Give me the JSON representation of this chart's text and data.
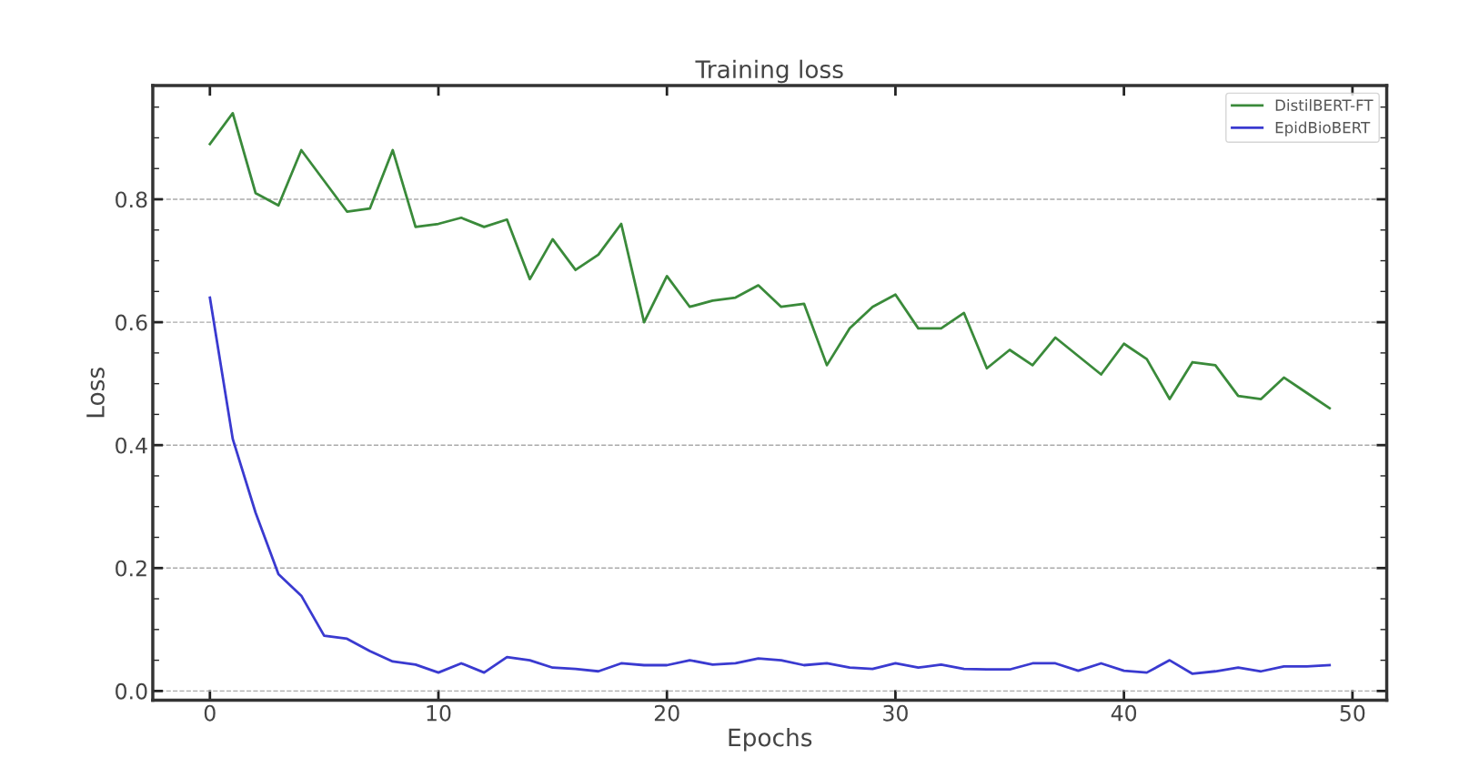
{
  "chart_data": {
    "type": "line",
    "title": "Training loss",
    "xlabel": "Epochs",
    "ylabel": "Loss",
    "x": [
      0,
      1,
      2,
      3,
      4,
      5,
      6,
      7,
      8,
      9,
      10,
      11,
      12,
      13,
      14,
      15,
      16,
      17,
      18,
      19,
      20,
      21,
      22,
      23,
      24,
      25,
      26,
      27,
      28,
      29,
      30,
      31,
      32,
      33,
      34,
      35,
      36,
      37,
      38,
      39,
      40,
      41,
      42,
      43,
      44,
      45,
      46,
      47,
      48,
      49
    ],
    "series": [
      {
        "name": "DistilBERT-FT",
        "color": "#3a8a3a",
        "values": [
          0.89,
          0.94,
          0.81,
          0.79,
          0.88,
          0.83,
          0.78,
          0.785,
          0.88,
          0.755,
          0.76,
          0.77,
          0.755,
          0.767,
          0.67,
          0.735,
          0.685,
          0.71,
          0.76,
          0.6,
          0.675,
          0.625,
          0.635,
          0.64,
          0.66,
          0.625,
          0.63,
          0.53,
          0.59,
          0.625,
          0.645,
          0.59,
          0.59,
          0.615,
          0.525,
          0.555,
          0.53,
          0.575,
          0.545,
          0.515,
          0.565,
          0.54,
          0.475,
          0.535,
          0.53,
          0.48,
          0.475,
          0.51,
          0.485,
          0.46
        ]
      },
      {
        "name": "EpidBioBERT",
        "color": "#3a3ad0",
        "values": [
          0.64,
          0.41,
          0.29,
          0.19,
          0.155,
          0.09,
          0.085,
          0.065,
          0.048,
          0.043,
          0.03,
          0.045,
          0.03,
          0.055,
          0.05,
          0.038,
          0.036,
          0.032,
          0.045,
          0.042,
          0.042,
          0.05,
          0.043,
          0.045,
          0.053,
          0.05,
          0.042,
          0.045,
          0.038,
          0.036,
          0.045,
          0.038,
          0.043,
          0.036,
          0.035,
          0.035,
          0.045,
          0.045,
          0.033,
          0.045,
          0.033,
          0.03,
          0.05,
          0.028,
          0.032,
          0.038,
          0.032,
          0.04,
          0.04,
          0.042
        ]
      }
    ],
    "xlim": [
      -2.5,
      51.5
    ],
    "xticks": [
      0,
      10,
      20,
      30,
      40,
      50
    ],
    "ylim": [
      -0.015,
      0.985
    ],
    "yticks": [
      {
        "value": 0,
        "label": "0.0"
      },
      0.2,
      0.4,
      0.6,
      0.8
    ],
    "grid": "y",
    "legend": "top right",
    "marker": "none",
    "line_style": "solid"
  }
}
